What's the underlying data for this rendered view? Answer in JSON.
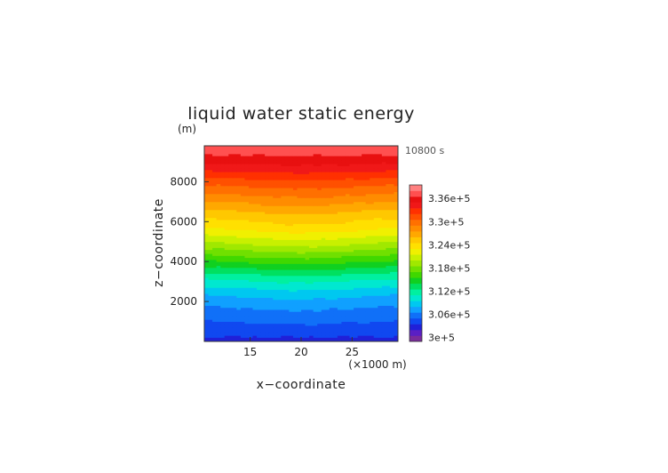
{
  "chart_data": {
    "type": "heatmap",
    "title": "liquid water static energy",
    "time_label": "10800 s",
    "xlabel": "x−coordinate",
    "ylabel": "z−coordinate",
    "x_unit_label": "(×1000 m)",
    "y_unit_label": "(m)",
    "xlim": [
      10.5,
      29.5
    ],
    "ylim": [
      0,
      9800
    ],
    "x_ticks": [
      {
        "value": 15,
        "label": "15"
      },
      {
        "value": 20,
        "label": "20"
      },
      {
        "value": 25,
        "label": "25"
      }
    ],
    "y_ticks": [
      {
        "value": 2000,
        "label": "2000"
      },
      {
        "value": 4000,
        "label": "4000"
      },
      {
        "value": 6000,
        "label": "6000"
      },
      {
        "value": 8000,
        "label": "8000"
      }
    ],
    "z_profile": {
      "z": [
        0,
        800,
        1600,
        2400,
        3200,
        4000,
        4800,
        5600,
        6400,
        7200,
        8000,
        8800,
        9800
      ],
      "value": [
        303000,
        304500,
        306000,
        308000,
        311000,
        315000,
        319000,
        322500,
        325000,
        328000,
        331000,
        334500,
        338000
      ]
    },
    "colorbar": {
      "levels": [
        299000,
        300500,
        302000,
        303500,
        305000,
        306500,
        308000,
        309500,
        311000,
        312500,
        314000,
        315500,
        317000,
        318500,
        320000,
        321500,
        323000,
        324500,
        326000,
        327500,
        329000,
        330500,
        332000,
        333500,
        335000,
        336500,
        338000,
        339500
      ],
      "colors": [
        "#7a2b9c",
        "#5a1fc4",
        "#2020d8",
        "#1048f0",
        "#1070f8",
        "#10a0ff",
        "#00c8f0",
        "#00e8d0",
        "#00f0a0",
        "#00e060",
        "#10d020",
        "#40d800",
        "#70e000",
        "#a0e800",
        "#c8f000",
        "#f0f000",
        "#ffe000",
        "#ffc800",
        "#ffa800",
        "#ff8c00",
        "#ff7000",
        "#ff5000",
        "#ff3000",
        "#f01818",
        "#e81010",
        "#ff5050",
        "#ff8080"
      ],
      "tick_labels": [
        {
          "value": 300000,
          "label": "3e+5"
        },
        {
          "value": 306000,
          "label": "3.06e+5"
        },
        {
          "value": 312000,
          "label": "3.12e+5"
        },
        {
          "value": 318000,
          "label": "3.18e+5"
        },
        {
          "value": 324000,
          "label": "3.24e+5"
        },
        {
          "value": 330000,
          "label": "3.3e+5"
        },
        {
          "value": 336000,
          "label": "3.36e+5"
        }
      ]
    }
  }
}
